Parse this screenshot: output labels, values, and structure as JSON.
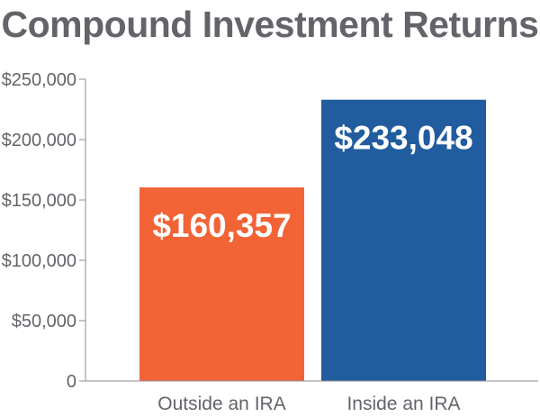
{
  "chart_data": {
    "type": "bar",
    "title": "Compound Investment Returns",
    "xlabel": "",
    "ylabel": "",
    "categories": [
      "Outside an IRA",
      "Inside an IRA"
    ],
    "values": [
      160357,
      233048
    ],
    "data_labels": [
      "$160,357",
      "$233,048"
    ],
    "colors": [
      "#F26336",
      "#215C9F"
    ],
    "ylim": [
      0,
      250000
    ],
    "yticks": [
      0,
      50000,
      100000,
      150000,
      200000,
      250000
    ],
    "ytick_labels": [
      "0",
      "$50,000",
      "$100,000",
      "$150,000",
      "$200,000",
      "$250,000"
    ],
    "grid": false,
    "legend": "none"
  }
}
